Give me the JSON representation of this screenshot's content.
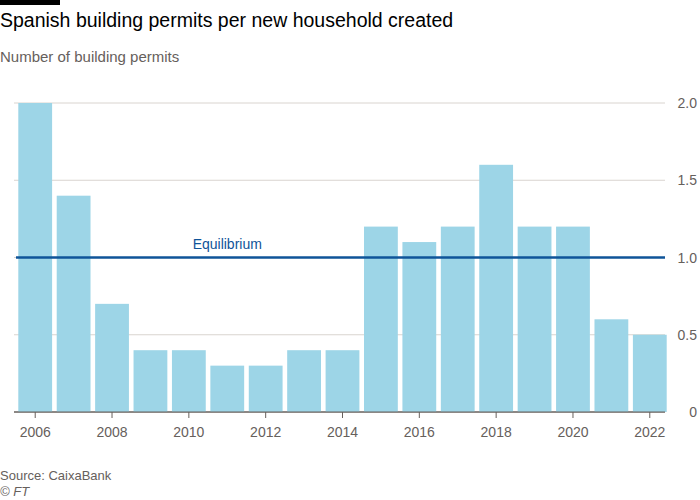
{
  "chart_data": {
    "type": "bar",
    "title": "Spanish building permits per new household created",
    "subtitle": "Number of building permits",
    "source": "Source: CaixaBank",
    "credit": "© FT",
    "categories": [
      "2006",
      null,
      "2008",
      null,
      "2010",
      null,
      "2012",
      null,
      "2014",
      null,
      "2016",
      null,
      "2018",
      null,
      "2020",
      null,
      "2022"
    ],
    "values": [
      2.0,
      1.4,
      0.7,
      0.4,
      0.4,
      0.3,
      0.3,
      0.4,
      0.4,
      1.2,
      1.1,
      1.2,
      1.6,
      1.2,
      1.2,
      0.6,
      0.5
    ],
    "color": "#9dd5e7",
    "ylim": [
      0,
      2
    ],
    "yticks": [
      0,
      0.5,
      {
        "value": 1,
        "label": "1.0"
      },
      1.5,
      {
        "value": 2,
        "label": "2.0"
      }
    ],
    "grid": true,
    "annotations": [
      {
        "text": "Equilibrium",
        "y": 1,
        "color": "#0f5499"
      }
    ]
  }
}
